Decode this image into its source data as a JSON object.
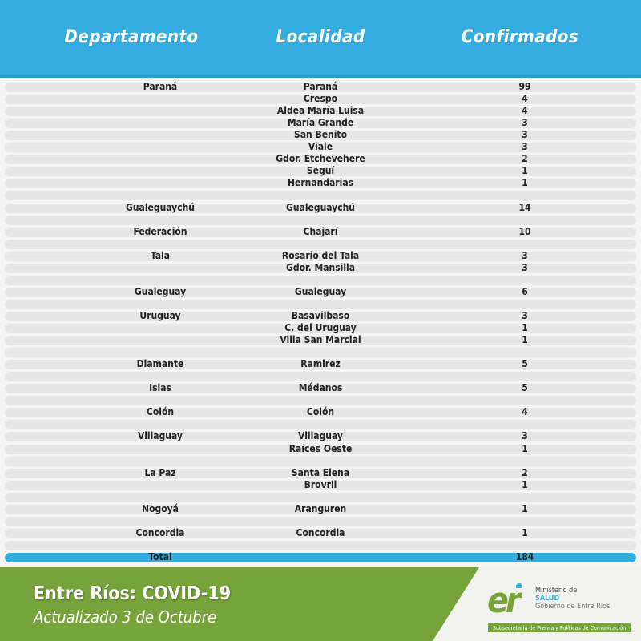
{
  "header": {
    "col1": "Departamento",
    "col2": "Localidad",
    "col3": "Confirmados"
  },
  "rows": [
    [
      "Paraná",
      "Paraná",
      "99"
    ],
    [
      "",
      "Crespo",
      "4"
    ],
    [
      "",
      "Aldea María Luisa",
      "4"
    ],
    [
      "",
      "María Grande",
      "3"
    ],
    [
      "",
      "San Benito",
      "3"
    ],
    [
      "",
      "Viale",
      "3"
    ],
    [
      "",
      "Gdor. Etchevehere",
      "2"
    ],
    [
      "",
      "Seguí",
      "1"
    ],
    [
      "",
      "Hernandarias",
      "1"
    ],
    [
      "",
      "",
      ""
    ],
    [
      "Gualeguaychú",
      "Gualeguaychú",
      "14"
    ],
    [
      "",
      "",
      ""
    ],
    [
      "Federación",
      "Chajarí",
      "10"
    ],
    [
      "",
      "",
      ""
    ],
    [
      "Tala",
      "Rosario del Tala",
      "3"
    ],
    [
      "",
      "Gdor. Mansilla",
      "3"
    ],
    [
      "",
      "",
      ""
    ],
    [
      "Gualeguay",
      "Gualeguay",
      "6"
    ],
    [
      "",
      "",
      ""
    ],
    [
      "Uruguay",
      "Basavilbaso",
      "3"
    ],
    [
      "",
      "C. del Uruguay",
      "1"
    ],
    [
      "",
      "Villa San Marcial",
      "1"
    ],
    [
      "",
      "",
      ""
    ],
    [
      "Diamante",
      "Ramirez",
      "5"
    ],
    [
      "",
      "",
      ""
    ],
    [
      "Islas",
      "Médanos",
      "5"
    ],
    [
      "",
      "",
      ""
    ],
    [
      "Colón",
      "Colón",
      "4"
    ],
    [
      "",
      "",
      ""
    ],
    [
      "Villaguay",
      "Villaguay",
      "3"
    ],
    [
      "",
      "Raíces Oeste",
      "1"
    ],
    [
      "",
      "",
      ""
    ],
    [
      "La Paz",
      "Santa Elena",
      "2"
    ],
    [
      "",
      "Brovril",
      "1"
    ],
    [
      "",
      "",
      ""
    ],
    [
      "Nogoyá",
      "Aranguren",
      "1"
    ],
    [
      "",
      "",
      ""
    ],
    [
      "Concordia",
      "Concordia",
      "1"
    ],
    [
      "",
      "",
      ""
    ]
  ],
  "total": {
    "label": "Total",
    "value": "184"
  },
  "footer": {
    "title": "Entre Ríos: COVID-19",
    "subtitle": "Actualizado 3 de Octubre"
  },
  "logo": {
    "mark": "er",
    "line1": "Ministerio de",
    "line2": "SALUD",
    "line3": "Gobierno de Entre Ríos",
    "band": "Subsecretaría de Prensa y Políticas de Comunicación"
  },
  "colors": {
    "header_blue": "#35ace0",
    "footer_green": "#76a33a",
    "row_gray": "#e6e6e6"
  }
}
